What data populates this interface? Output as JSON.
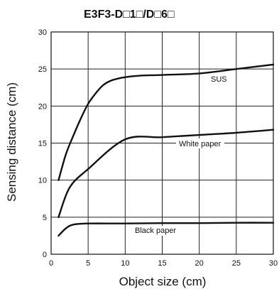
{
  "chart_data": {
    "type": "line",
    "title": "E3F3-D□1□/D□6□",
    "xlabel": "Object size (cm)",
    "ylabel": "Sensing distance (cm)",
    "xlim": [
      0,
      30
    ],
    "ylim": [
      0,
      30
    ],
    "xticks": [
      "0",
      "5",
      "10",
      "15",
      "20",
      "25",
      "30"
    ],
    "yticks": [
      "0",
      "5",
      "10",
      "15",
      "20",
      "25",
      "30"
    ],
    "grid": true,
    "series": [
      {
        "name": "SUS",
        "x": [
          1,
          2,
          3,
          4,
          5,
          6,
          7,
          8,
          9,
          10,
          12,
          15,
          20,
          25,
          30
        ],
        "y": [
          10,
          13.5,
          16,
          18.3,
          20.3,
          21.7,
          22.8,
          23.4,
          23.7,
          23.9,
          24.1,
          24.2,
          24.4,
          25.0,
          25.6
        ]
      },
      {
        "name": "White paper",
        "x": [
          1,
          2.5,
          5,
          10,
          15,
          20,
          25,
          30
        ],
        "y": [
          5,
          9,
          11.5,
          15.5,
          15.8,
          16.1,
          16.4,
          16.8
        ]
      },
      {
        "name": "Black paper",
        "x": [
          1,
          2,
          3,
          5,
          10,
          15,
          20,
          25,
          30
        ],
        "y": [
          2.5,
          3.5,
          4.0,
          4.15,
          4.15,
          4.2,
          4.2,
          4.25,
          4.25
        ]
      }
    ]
  }
}
